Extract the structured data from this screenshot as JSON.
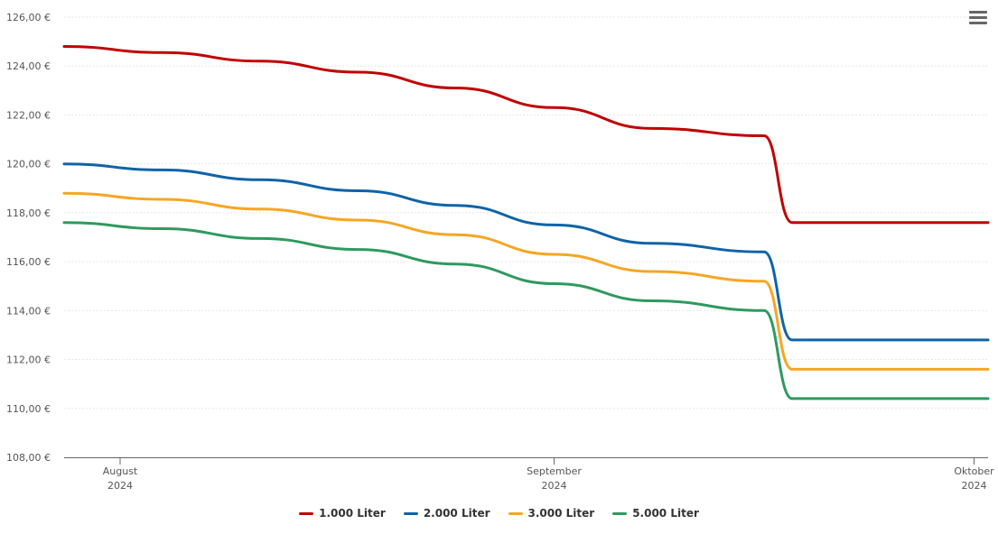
{
  "chart_data": {
    "type": "line",
    "title": "",
    "xlabel": "",
    "ylabel": "",
    "ylim": [
      108,
      126
    ],
    "y_ticks": [
      108,
      110,
      112,
      114,
      116,
      118,
      120,
      122,
      124,
      126
    ],
    "y_tick_labels": [
      "108,00 €",
      "110,00 €",
      "112,00 €",
      "114,00 €",
      "116,00 €",
      "118,00 €",
      "120,00 €",
      "122,00 €",
      "124,00 €",
      "126,00 €"
    ],
    "x_range": [
      "2024-07-28",
      "2024-10-02"
    ],
    "x_ticks": [
      {
        "date": "2024-08-01",
        "label": "August",
        "year": "2024"
      },
      {
        "date": "2024-09-01",
        "label": "September",
        "year": "2024"
      },
      {
        "date": "2024-10-01",
        "label": "Oktober",
        "year": "2024"
      }
    ],
    "grid": true,
    "legend_position": "bottom-center",
    "series": [
      {
        "name": "1.000 Liter",
        "color": "#c00000",
        "x": [
          "2024-07-28",
          "2024-08-04",
          "2024-08-11",
          "2024-08-18",
          "2024-08-25",
          "2024-09-01",
          "2024-09-08",
          "2024-09-16",
          "2024-09-18",
          "2024-10-02"
        ],
        "y": [
          124.8,
          124.55,
          124.2,
          123.75,
          123.1,
          122.3,
          121.45,
          121.15,
          117.6,
          117.6
        ]
      },
      {
        "name": "2.000 Liter",
        "color": "#0f63a8",
        "x": [
          "2024-07-28",
          "2024-08-04",
          "2024-08-11",
          "2024-08-18",
          "2024-08-25",
          "2024-09-01",
          "2024-09-08",
          "2024-09-16",
          "2024-09-18",
          "2024-10-02"
        ],
        "y": [
          120.0,
          119.75,
          119.35,
          118.9,
          118.3,
          117.5,
          116.75,
          116.4,
          112.8,
          112.8
        ]
      },
      {
        "name": "3.000 Liter",
        "color": "#f6a623",
        "x": [
          "2024-07-28",
          "2024-08-04",
          "2024-08-11",
          "2024-08-18",
          "2024-08-25",
          "2024-09-01",
          "2024-09-08",
          "2024-09-16",
          "2024-09-18",
          "2024-10-02"
        ],
        "y": [
          118.8,
          118.55,
          118.15,
          117.7,
          117.1,
          116.3,
          115.6,
          115.2,
          111.6,
          111.6
        ]
      },
      {
        "name": "5.000 Liter",
        "color": "#2e9a5e",
        "x": [
          "2024-07-28",
          "2024-08-04",
          "2024-08-11",
          "2024-08-18",
          "2024-08-25",
          "2024-09-01",
          "2024-09-08",
          "2024-09-16",
          "2024-09-18",
          "2024-10-02"
        ],
        "y": [
          117.6,
          117.35,
          116.95,
          116.5,
          115.9,
          115.1,
          114.4,
          114.0,
          110.4,
          110.4
        ]
      }
    ]
  }
}
